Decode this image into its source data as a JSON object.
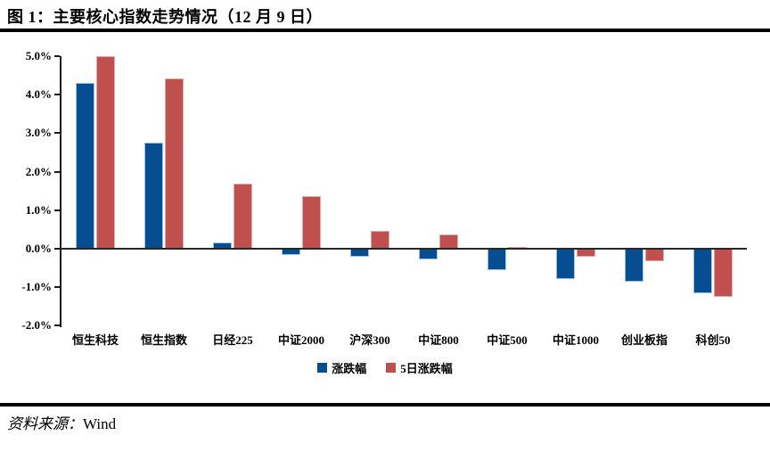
{
  "header": {
    "title": "图 1：主要核心指数走势情况（12 月 9 日）"
  },
  "footer": {
    "source_label": "资料来源：",
    "source_value": "Wind"
  },
  "chart_data": {
    "type": "bar",
    "title": "主要核心指数走势情况（12月9日）",
    "categories": [
      "恒生科技",
      "恒生指数",
      "日经225",
      "中证2000",
      "沪深300",
      "中证800",
      "中证500",
      "中证1000",
      "创业板指",
      "科创50"
    ],
    "series": [
      {
        "name": "涨跌幅",
        "color": "#064d92",
        "border_color": "#9cc2e5",
        "values": [
          4.3,
          2.76,
          0.17,
          -0.16,
          -0.2,
          -0.28,
          -0.56,
          -0.78,
          -0.85,
          -1.15
        ]
      },
      {
        "name": "5日涨跌幅",
        "color": "#c0504d",
        "border_color": "#e2a9a7",
        "values": [
          5.0,
          4.42,
          1.68,
          1.37,
          0.46,
          0.37,
          0.05,
          -0.2,
          -0.33,
          -1.26
        ]
      }
    ],
    "xlabel": "",
    "ylabel": "",
    "ylim": [
      -2.0,
      5.0
    ],
    "ytick_step": 1.0,
    "ytick_format": "0.0%",
    "grid": false,
    "legend_position": "bottom"
  }
}
